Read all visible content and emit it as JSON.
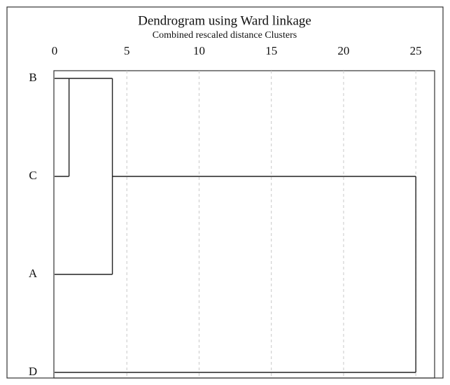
{
  "chart_data": {
    "type": "dendrogram",
    "title": "Dendrogram using Ward linkage",
    "subtitle": "Combined rescaled distance Clusters",
    "leaves": [
      "B",
      "C",
      "A",
      "D"
    ],
    "heights": [
      1,
      4,
      25
    ],
    "xlim": [
      0,
      26.3
    ],
    "xticks": [
      0,
      5,
      10,
      15,
      20,
      25
    ],
    "grid": true
  }
}
